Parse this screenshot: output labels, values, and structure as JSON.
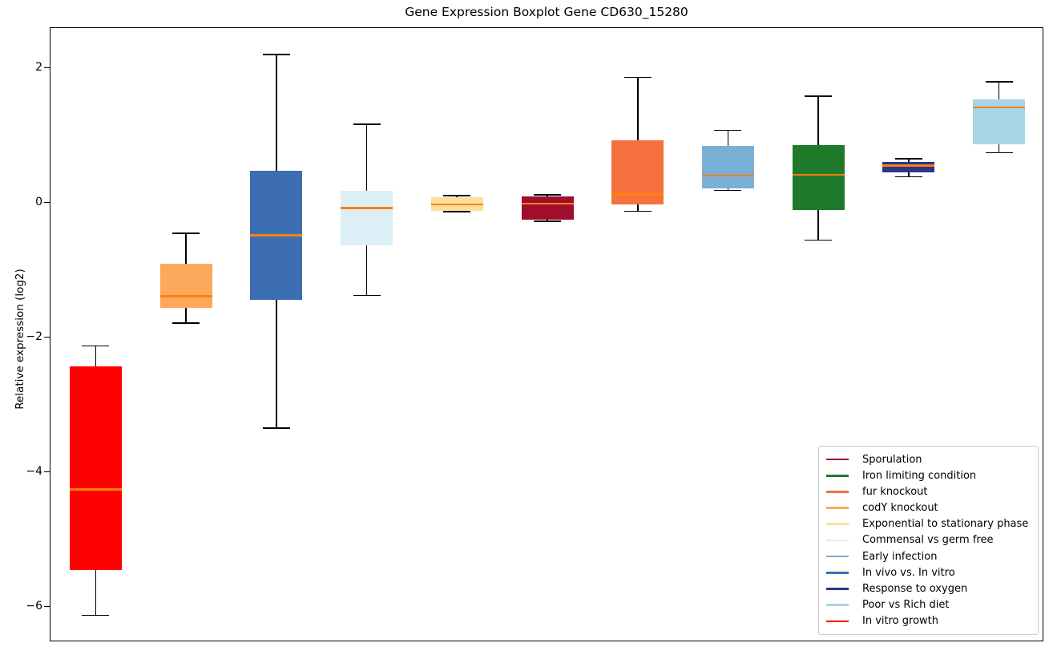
{
  "chart_data": {
    "type": "boxplot",
    "title": "Gene Expression Boxplot Gene CD630_15280",
    "ylabel": "Relative expression (log2)",
    "xlabel": "",
    "x_tick_labels": [],
    "yticks": [
      2,
      0,
      -2,
      -4,
      -6
    ],
    "ylim": [
      -6.52,
      2.6
    ],
    "grid": false,
    "legend_position": "lower right",
    "median_color": "#FF7F0E",
    "whisker_color": "#000000",
    "boxes": [
      {
        "position": 1,
        "label": "In vitro growth",
        "color": "#FF0000",
        "whislo": -6.12,
        "q1": -5.45,
        "med": -4.25,
        "q3": -2.42,
        "whishi": -2.12
      },
      {
        "position": 2,
        "label": "codY knockout",
        "color": "#FCA95C",
        "whislo": -1.78,
        "q1": -1.55,
        "med": -1.38,
        "q3": -0.9,
        "whishi": -0.45
      },
      {
        "position": 3,
        "label": "In vivo vs. In vitro",
        "color": "#3D6EB4",
        "whislo": -3.34,
        "q1": -1.44,
        "med": -0.48,
        "q3": 0.48,
        "whishi": 2.21
      },
      {
        "position": 4,
        "label": "Commensal vs germ free",
        "color": "#DDEFF6",
        "whislo": -1.37,
        "q1": -0.63,
        "med": -0.07,
        "q3": 0.18,
        "whishi": 1.17
      },
      {
        "position": 5,
        "label": "Exponential to stationary phase",
        "color": "#FBDF9B",
        "whislo": -0.13,
        "q1": -0.11,
        "med": -0.02,
        "q3": 0.09,
        "whishi": 0.11
      },
      {
        "position": 6,
        "label": "Sporulation",
        "color": "#A00E2E",
        "whislo": -0.27,
        "q1": -0.25,
        "med": -0.01,
        "q3": 0.1,
        "whishi": 0.12
      },
      {
        "position": 7,
        "label": "fur knockout",
        "color": "#F5713D",
        "whislo": -0.12,
        "q1": -0.02,
        "med": 0.13,
        "q3": 0.93,
        "whishi": 1.87
      },
      {
        "position": 8,
        "label": "Early infection",
        "color": "#7AAFD6",
        "whislo": 0.19,
        "q1": 0.22,
        "med": 0.41,
        "q3": 0.85,
        "whishi": 1.08
      },
      {
        "position": 9,
        "label": "Iron limiting condition",
        "color": "#1F7A2C",
        "whislo": -0.55,
        "q1": -0.1,
        "med": 0.42,
        "q3": 0.86,
        "whishi": 1.59
      },
      {
        "position": 10,
        "label": "Response to oxygen",
        "color": "#2B3589",
        "whislo": 0.39,
        "q1": 0.46,
        "med": 0.56,
        "q3": 0.61,
        "whishi": 0.66
      },
      {
        "position": 11,
        "label": "Poor vs Rich diet",
        "color": "#A8D4E6",
        "whislo": 0.75,
        "q1": 0.87,
        "med": 1.42,
        "q3": 1.54,
        "whishi": 1.8
      }
    ],
    "legend": [
      {
        "label": "Sporulation",
        "color": "#A00E2E"
      },
      {
        "label": "Iron limiting condition",
        "color": "#1F7A2C"
      },
      {
        "label": "fur knockout",
        "color": "#F5713D"
      },
      {
        "label": "codY knockout",
        "color": "#FCA95C"
      },
      {
        "label": "Exponential to stationary phase",
        "color": "#FBDF9B"
      },
      {
        "label": "Commensal vs germ free",
        "color": "#DDEFF6"
      },
      {
        "label": "Early infection",
        "color": "#7AAFD6"
      },
      {
        "label": "In vivo vs. In vitro",
        "color": "#3D6EB4"
      },
      {
        "label": "Response to oxygen",
        "color": "#2B3589"
      },
      {
        "label": "Poor vs Rich diet",
        "color": "#A8D4E6"
      },
      {
        "label": "In vitro growth",
        "color": "#FF0000"
      }
    ]
  }
}
